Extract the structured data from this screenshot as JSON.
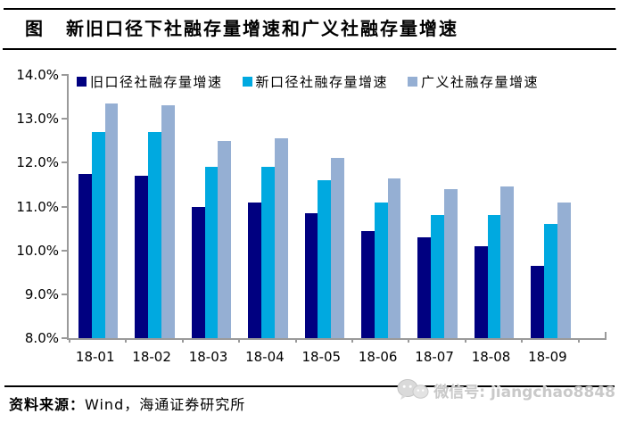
{
  "header": {
    "fig_label": "图",
    "title": "新旧口径下社融存量增速和广义社融存量增速"
  },
  "chart_data": {
    "type": "bar",
    "title": "新旧口径下社融存量增速和广义社融存量增速",
    "categories": [
      "18-01",
      "18-02",
      "18-03",
      "18-04",
      "18-05",
      "18-06",
      "18-07",
      "18-08",
      "18-09"
    ],
    "series": [
      {
        "name": "旧口径社融存量增速",
        "color": "#000080",
        "values": [
          11.75,
          11.7,
          11.0,
          11.1,
          10.85,
          10.45,
          10.3,
          10.1,
          9.65
        ]
      },
      {
        "name": "新口径社融存量增速",
        "color": "#00A9E0",
        "values": [
          12.7,
          12.7,
          11.9,
          11.9,
          11.6,
          11.1,
          10.8,
          10.8,
          10.6
        ]
      },
      {
        "name": "广义社融存量增速",
        "color": "#95AFD3",
        "values": [
          13.35,
          13.3,
          12.5,
          12.55,
          12.1,
          11.65,
          11.4,
          11.45,
          11.1
        ]
      }
    ],
    "unit": "%",
    "ylim": [
      8.0,
      14.0
    ],
    "yticks": [
      14.0,
      13.0,
      12.0,
      11.0,
      10.0,
      9.0,
      8.0
    ],
    "ytick_labels": [
      "14.0%",
      "13.0%",
      "12.0%",
      "11.0%",
      "10.0%",
      "9.0%",
      "8.0%"
    ],
    "grid": false,
    "legend_position": "top",
    "axis_color": "#9a9a9a"
  },
  "footer": {
    "source_label": "资料来源：",
    "source_text": "Wind，海通证券研究所"
  },
  "watermark": {
    "text": "微信号: jiangchao8848",
    "icon": "wechat-icon"
  }
}
